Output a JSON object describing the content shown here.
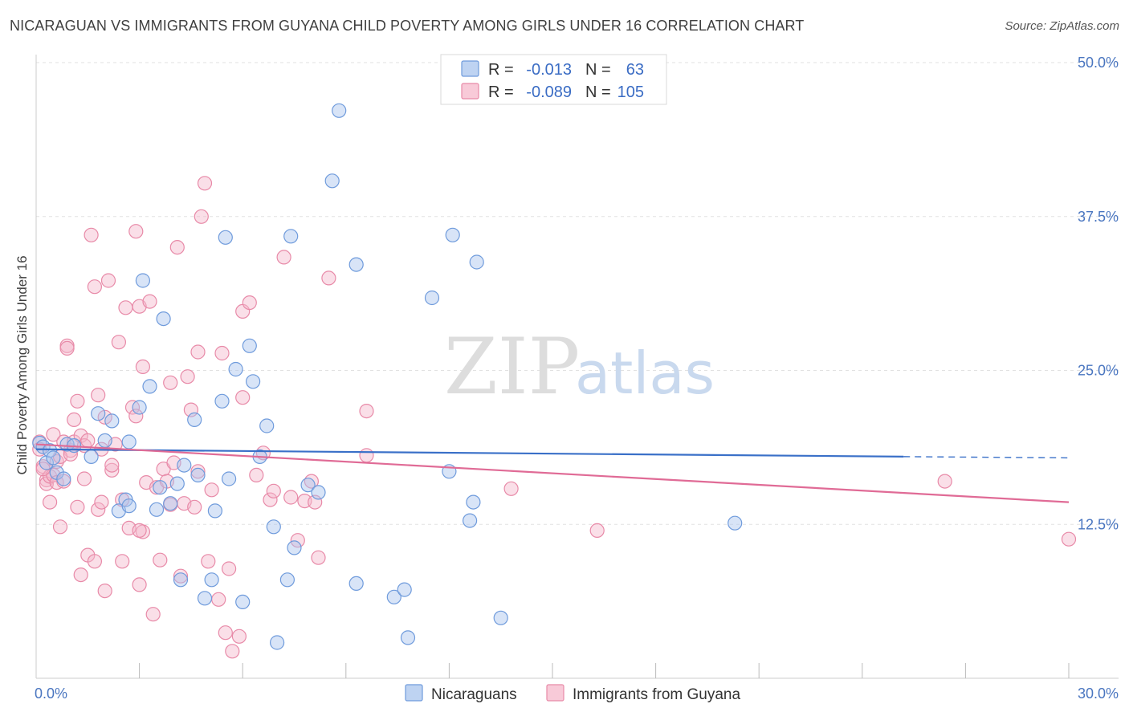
{
  "title": "NICARAGUAN VS IMMIGRANTS FROM GUYANA CHILD POVERTY AMONG GIRLS UNDER 16 CORRELATION CHART",
  "source": "Source: ZipAtlas.com",
  "colors": {
    "blue_fill": "#a8c4ee",
    "blue_stroke": "#6f9bdc",
    "blue_line": "#3a70c8",
    "pink_fill": "#f5b8cb",
    "pink_stroke": "#e88aa8",
    "pink_line": "#e06b96",
    "tick_text": "#4a76c0",
    "grid": "#e2e2e2"
  },
  "chart_data": {
    "type": "scatter",
    "title": "NICARAGUAN VS IMMIGRANTS FROM GUYANA CHILD POVERTY AMONG GIRLS UNDER 16 CORRELATION CHART",
    "xlabel": "",
    "ylabel": "Child Poverty Among Girls Under 16",
    "xlim": [
      0,
      30
    ],
    "ylim": [
      0,
      50
    ],
    "x_tick_labels": [
      {
        "value": 0,
        "label": "0.0%"
      },
      {
        "value": 30,
        "label": "30.0%"
      }
    ],
    "y_tick_labels": [
      {
        "value": 12.5,
        "label": "12.5%"
      },
      {
        "value": 25,
        "label": "25.0%"
      },
      {
        "value": 37.5,
        "label": "37.5%"
      },
      {
        "value": 50,
        "label": "50.0%"
      }
    ],
    "grid": true,
    "legend_placement": "top-center",
    "legend": [
      {
        "r_label": "R =",
        "r_value": "-0.013",
        "n_label": "N =",
        "n_value": "63"
      },
      {
        "r_label": "R =",
        "r_value": "-0.089",
        "n_label": "N =",
        "n_value": "105"
      }
    ],
    "series": [
      {
        "name": "Nicaraguans",
        "color": "#a8c4ee",
        "trend": {
          "x": [
            0,
            25.2
          ],
          "y": [
            18.6,
            18.0
          ],
          "dash_to_x": 30,
          "dash_to_y": 17.9
        },
        "points": [
          [
            0.1,
            19.1
          ],
          [
            0.2,
            18.8
          ],
          [
            0.3,
            17.5
          ],
          [
            0.4,
            18.5
          ],
          [
            0.5,
            17.9
          ],
          [
            0.6,
            16.7
          ],
          [
            0.8,
            16.2
          ],
          [
            0.9,
            19.0
          ],
          [
            1.1,
            18.9
          ],
          [
            1.6,
            18.0
          ],
          [
            1.8,
            21.5
          ],
          [
            2.0,
            19.3
          ],
          [
            2.2,
            20.9
          ],
          [
            2.4,
            13.6
          ],
          [
            2.6,
            14.5
          ],
          [
            2.7,
            14.0
          ],
          [
            2.7,
            19.2
          ],
          [
            3.0,
            22.0
          ],
          [
            3.1,
            32.3
          ],
          [
            3.3,
            23.7
          ],
          [
            3.5,
            13.7
          ],
          [
            3.6,
            15.5
          ],
          [
            3.7,
            29.2
          ],
          [
            3.9,
            14.2
          ],
          [
            4.1,
            15.8
          ],
          [
            4.2,
            8.0
          ],
          [
            4.3,
            17.3
          ],
          [
            4.6,
            21.0
          ],
          [
            4.7,
            16.5
          ],
          [
            4.9,
            6.5
          ],
          [
            5.1,
            8.0
          ],
          [
            5.2,
            13.6
          ],
          [
            5.4,
            22.5
          ],
          [
            5.5,
            35.8
          ],
          [
            5.6,
            16.2
          ],
          [
            5.8,
            25.1
          ],
          [
            6.0,
            6.2
          ],
          [
            6.2,
            27.0
          ],
          [
            6.3,
            24.1
          ],
          [
            6.7,
            20.5
          ],
          [
            6.5,
            18.0
          ],
          [
            6.9,
            12.3
          ],
          [
            7.0,
            2.9
          ],
          [
            7.3,
            8.0
          ],
          [
            7.4,
            35.9
          ],
          [
            7.5,
            10.6
          ],
          [
            7.9,
            15.7
          ],
          [
            8.2,
            15.1
          ],
          [
            8.6,
            40.4
          ],
          [
            8.8,
            46.1
          ],
          [
            9.3,
            33.6
          ],
          [
            9.3,
            7.7
          ],
          [
            10.4,
            6.6
          ],
          [
            10.7,
            7.2
          ],
          [
            10.8,
            3.3
          ],
          [
            11.5,
            30.9
          ],
          [
            12.0,
            16.8
          ],
          [
            12.1,
            36.0
          ],
          [
            12.6,
            12.8
          ],
          [
            12.7,
            14.3
          ],
          [
            12.8,
            33.8
          ],
          [
            13.5,
            4.9
          ],
          [
            20.3,
            12.6
          ]
        ]
      },
      {
        "name": "Immigrants from Guyana",
        "color": "#f5b8cb",
        "trend": {
          "x": [
            0,
            30
          ],
          "y": [
            19.0,
            14.3
          ]
        },
        "points": [
          [
            0.1,
            19.2
          ],
          [
            0.1,
            18.6
          ],
          [
            0.2,
            17.2
          ],
          [
            0.3,
            16.1
          ],
          [
            0.3,
            15.8
          ],
          [
            0.4,
            16.4
          ],
          [
            0.4,
            14.3
          ],
          [
            0.5,
            19.8
          ],
          [
            0.5,
            16.5
          ],
          [
            0.6,
            17.6
          ],
          [
            0.6,
            15.9
          ],
          [
            0.7,
            12.3
          ],
          [
            0.8,
            19.2
          ],
          [
            0.8,
            16.0
          ],
          [
            0.9,
            27.0
          ],
          [
            0.9,
            26.8
          ],
          [
            1.0,
            18.5
          ],
          [
            1.1,
            19.2
          ],
          [
            1.1,
            21.0
          ],
          [
            1.2,
            22.5
          ],
          [
            1.2,
            13.9
          ],
          [
            1.3,
            8.4
          ],
          [
            1.3,
            19.7
          ],
          [
            1.4,
            18.9
          ],
          [
            1.5,
            19.3
          ],
          [
            1.5,
            10.0
          ],
          [
            1.6,
            36.0
          ],
          [
            1.7,
            31.8
          ],
          [
            1.7,
            9.5
          ],
          [
            1.8,
            23.0
          ],
          [
            1.8,
            13.7
          ],
          [
            1.9,
            14.3
          ],
          [
            2.0,
            7.1
          ],
          [
            2.0,
            21.2
          ],
          [
            2.1,
            32.3
          ],
          [
            2.2,
            16.9
          ],
          [
            2.3,
            19.0
          ],
          [
            2.4,
            27.3
          ],
          [
            2.5,
            9.5
          ],
          [
            2.6,
            30.1
          ],
          [
            2.7,
            12.2
          ],
          [
            2.8,
            22.0
          ],
          [
            2.9,
            36.3
          ],
          [
            2.9,
            21.3
          ],
          [
            3.0,
            7.6
          ],
          [
            3.0,
            30.2
          ],
          [
            3.1,
            11.9
          ],
          [
            3.1,
            25.3
          ],
          [
            3.2,
            15.9
          ],
          [
            3.3,
            30.6
          ],
          [
            3.4,
            5.2
          ],
          [
            3.5,
            15.5
          ],
          [
            3.6,
            9.6
          ],
          [
            3.7,
            17.0
          ],
          [
            3.8,
            16.0
          ],
          [
            3.9,
            24.0
          ],
          [
            4.0,
            17.5
          ],
          [
            4.1,
            35.0
          ],
          [
            4.2,
            8.3
          ],
          [
            4.3,
            14.2
          ],
          [
            4.4,
            24.5
          ],
          [
            4.5,
            21.8
          ],
          [
            4.7,
            16.8
          ],
          [
            4.7,
            26.5
          ],
          [
            4.8,
            37.5
          ],
          [
            4.9,
            40.2
          ],
          [
            5.0,
            9.5
          ],
          [
            5.1,
            15.3
          ],
          [
            5.3,
            6.4
          ],
          [
            5.4,
            26.4
          ],
          [
            5.5,
            3.7
          ],
          [
            5.6,
            8.9
          ],
          [
            5.7,
            2.2
          ],
          [
            5.9,
            3.4
          ],
          [
            6.0,
            29.8
          ],
          [
            6.0,
            22.8
          ],
          [
            6.2,
            30.5
          ],
          [
            6.4,
            16.5
          ],
          [
            6.6,
            18.3
          ],
          [
            6.8,
            14.5
          ],
          [
            7.2,
            34.2
          ],
          [
            7.4,
            14.7
          ],
          [
            7.6,
            11.2
          ],
          [
            7.8,
            14.4
          ],
          [
            8.0,
            16.0
          ],
          [
            8.1,
            14.3
          ],
          [
            8.2,
            9.8
          ],
          [
            8.5,
            32.5
          ],
          [
            9.6,
            21.7
          ],
          [
            9.6,
            18.1
          ],
          [
            0.2,
            17.0
          ],
          [
            0.7,
            18.0
          ],
          [
            1.0,
            18.2
          ],
          [
            1.4,
            16.2
          ],
          [
            1.9,
            18.6
          ],
          [
            2.2,
            17.3
          ],
          [
            2.5,
            14.5
          ],
          [
            3.0,
            12.0
          ],
          [
            3.9,
            14.1
          ],
          [
            4.6,
            13.9
          ],
          [
            13.8,
            15.4
          ],
          [
            16.3,
            12.0
          ],
          [
            26.4,
            16.0
          ],
          [
            30.0,
            11.3
          ],
          [
            6.9,
            15.2
          ]
        ]
      }
    ]
  }
}
